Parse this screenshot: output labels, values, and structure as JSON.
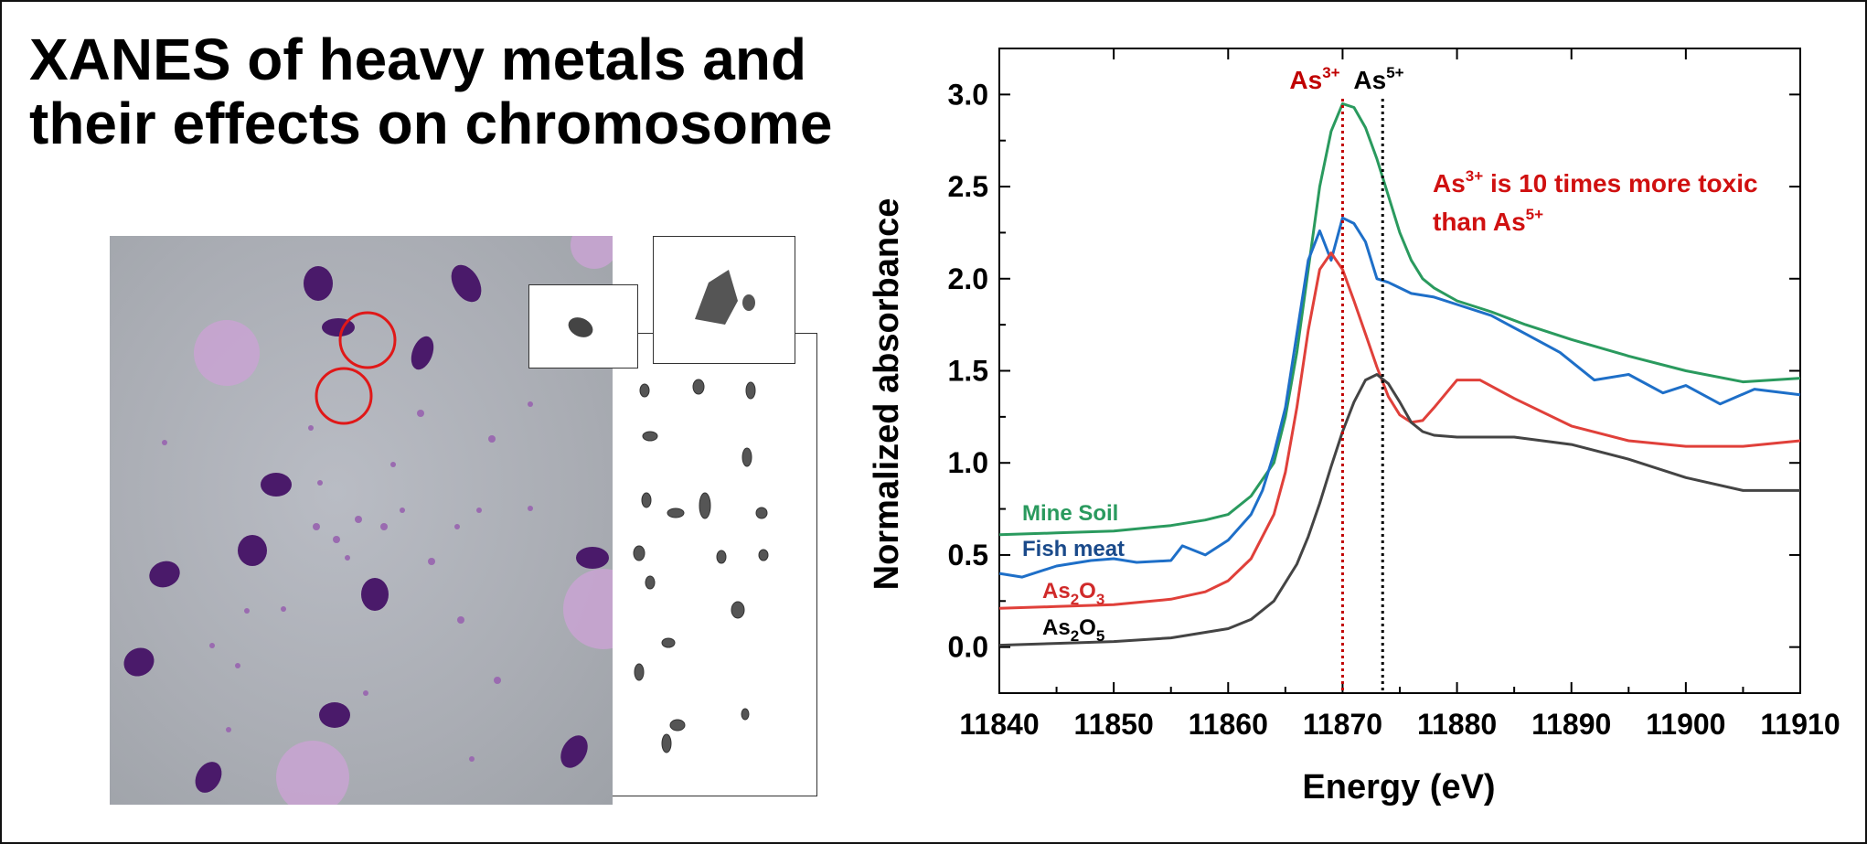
{
  "title_lines": [
    "XANES of heavy metals and",
    "their effects on chromosome"
  ],
  "figure": {
    "micrograph_icon": "microscope-chromosome-image",
    "karyotype_icon": "chromosome-spread-image"
  },
  "chart_data": {
    "type": "line",
    "xlabel": "Energy (eV)",
    "ylabel": "Normalized absorbance",
    "xlim": [
      11840,
      11910
    ],
    "ylim": [
      -0.25,
      3.25
    ],
    "xticks": [
      11840,
      11850,
      11860,
      11870,
      11880,
      11890,
      11900,
      11910
    ],
    "yticks": [
      0.0,
      0.5,
      1.0,
      1.5,
      2.0,
      2.5,
      3.0
    ],
    "grid": false,
    "reference_lines": [
      {
        "label": "As3+",
        "x": 11870,
        "color": "#c00000"
      },
      {
        "label": "As5+",
        "x": 11873.5,
        "color": "#000000"
      }
    ],
    "annotation": {
      "text": "As3+ is 10 times more toxic than As5+",
      "color": "#d01010"
    },
    "series": [
      {
        "name": "Mine Soil",
        "color": "#2a9a5e",
        "x": [
          11840,
          11845,
          11850,
          11855,
          11858,
          11860,
          11862,
          11864,
          11865,
          11866,
          11867,
          11868,
          11869,
          11870,
          11871,
          11872,
          11873,
          11874,
          11875,
          11876,
          11877,
          11878,
          11880,
          11883,
          11886,
          11890,
          11895,
          11900,
          11905,
          11910
        ],
        "y": [
          0.61,
          0.62,
          0.63,
          0.66,
          0.69,
          0.72,
          0.82,
          1.0,
          1.25,
          1.6,
          2.05,
          2.5,
          2.8,
          2.95,
          2.93,
          2.82,
          2.65,
          2.45,
          2.25,
          2.1,
          2.0,
          1.95,
          1.88,
          1.82,
          1.75,
          1.67,
          1.58,
          1.5,
          1.44,
          1.46
        ]
      },
      {
        "name": "Fish meat",
        "color": "#1e6fc8",
        "x": [
          11840,
          11842,
          11845,
          11848,
          11850,
          11852,
          11855,
          11856,
          11858,
          11860,
          11862,
          11863,
          11864,
          11865,
          11866,
          11867,
          11868,
          11869,
          11870,
          11871,
          11872,
          11873,
          11874,
          11876,
          11878,
          11880,
          11883,
          11886,
          11889,
          11892,
          11895,
          11898,
          11900,
          11903,
          11906,
          11910
        ],
        "y": [
          0.4,
          0.38,
          0.44,
          0.47,
          0.48,
          0.46,
          0.47,
          0.55,
          0.5,
          0.58,
          0.72,
          0.85,
          1.05,
          1.3,
          1.7,
          2.1,
          2.26,
          2.1,
          2.33,
          2.3,
          2.2,
          2.0,
          1.98,
          1.92,
          1.9,
          1.86,
          1.8,
          1.7,
          1.6,
          1.45,
          1.48,
          1.38,
          1.42,
          1.32,
          1.4,
          1.37
        ]
      },
      {
        "name": "As2O3",
        "color": "#e0403a",
        "x": [
          11840,
          11845,
          11850,
          11855,
          11858,
          11860,
          11862,
          11864,
          11865,
          11866,
          11867,
          11868,
          11869,
          11870,
          11871,
          11872,
          11873,
          11874,
          11875,
          11876,
          11877,
          11878,
          11880,
          11882,
          11885,
          11890,
          11895,
          11900,
          11905,
          11910
        ],
        "y": [
          0.21,
          0.22,
          0.23,
          0.26,
          0.3,
          0.36,
          0.48,
          0.72,
          0.95,
          1.3,
          1.72,
          2.05,
          2.14,
          2.05,
          1.88,
          1.7,
          1.52,
          1.36,
          1.26,
          1.22,
          1.23,
          1.3,
          1.45,
          1.45,
          1.35,
          1.2,
          1.12,
          1.09,
          1.09,
          1.12
        ]
      },
      {
        "name": "As2O5",
        "color": "#444444",
        "x": [
          11840,
          11845,
          11850,
          11855,
          11860,
          11862,
          11864,
          11866,
          11867,
          11868,
          11869,
          11870,
          11871,
          11872,
          11873,
          11874,
          11875,
          11876,
          11877,
          11878,
          11880,
          11885,
          11890,
          11895,
          11900,
          11905,
          11910
        ],
        "y": [
          0.01,
          0.02,
          0.03,
          0.05,
          0.1,
          0.15,
          0.25,
          0.45,
          0.6,
          0.78,
          0.98,
          1.17,
          1.33,
          1.45,
          1.48,
          1.43,
          1.33,
          1.22,
          1.17,
          1.15,
          1.14,
          1.14,
          1.1,
          1.02,
          0.92,
          0.85,
          0.85
        ]
      }
    ]
  }
}
